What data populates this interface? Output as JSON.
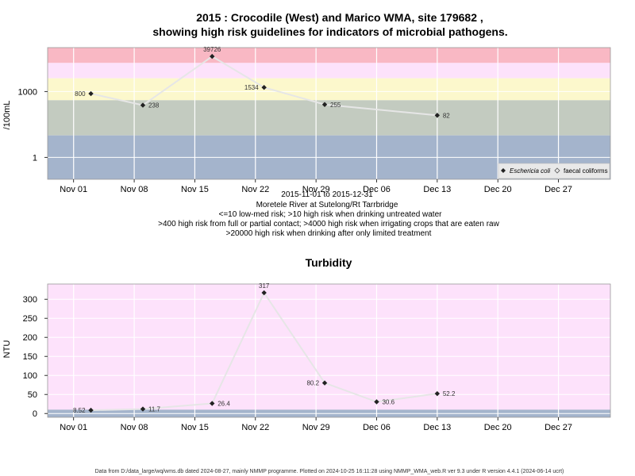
{
  "page": {
    "title_line1": "2015 : Crocodile (West) and Marico WMA, site 179682 ,",
    "title_line2": "showing high risk guidelines for indicators of microbial pathogens.",
    "footer": "Data from D:/data_large/wq/wms.db dated 2024-08-27, mainly NMMP programme. Plotted on 2024-10-25 16:11:28 using NMMP_WMA_web.R ver 9.3 under R version 4.4.1 (2024-06-14 ucrt)"
  },
  "micro": {
    "ylabel": "/100mL",
    "subtitle_lines": [
      "2015-11-01 to 2015-12-31",
      "Moretele River at Sutelong/Rt Tarrbridge",
      "<=10 low-med risk; >10 high risk when drinking untreated water",
      ">400 high risk from full or partial contact; >4000 high risk when irrigating crops that are eaten raw",
      ">20000 high risk when drinking after only limited treatment"
    ],
    "legend": [
      "Eschericia coli",
      "faecal coliforms"
    ]
  },
  "turb": {
    "title": "Turbidity",
    "ylabel": "NTU"
  },
  "colors": {
    "band_red": "#f9b8c4",
    "band_pink": "#fde2fb",
    "band_yellow": "#fcf8cc",
    "band_green": "#c3cbc0",
    "band_blue": "#a4b4cc",
    "turb_bg": "#fde2fb",
    "turb_low": "#a4b4cc",
    "line": "#e6e6e6",
    "point": "#222222"
  },
  "chart_data": [
    {
      "type": "line",
      "scale": "log10",
      "x_ticks": [
        "Nov 01",
        "Nov 08",
        "Nov 15",
        "Nov 22",
        "Nov 29",
        "Dec 06",
        "Dec 13",
        "Dec 20",
        "Dec 27"
      ],
      "x_tick_dates": [
        "2015-11-01",
        "2015-11-08",
        "2015-11-15",
        "2015-11-22",
        "2015-11-29",
        "2015-12-06",
        "2015-12-13",
        "2015-12-20",
        "2015-12-27"
      ],
      "x_range": [
        "2015-10-29",
        "2016-01-02"
      ],
      "y_ticks": [
        1,
        1000
      ],
      "y_ticklabels": [
        "1",
        "1000"
      ],
      "ylim": [
        0.1,
        100000
      ],
      "bands": [
        {
          "from": 20000,
          "to": 100000,
          "color": "band_red"
        },
        {
          "from": 4000,
          "to": 20000,
          "color": "band_pink"
        },
        {
          "from": 400,
          "to": 4000,
          "color": "band_yellow"
        },
        {
          "from": 10,
          "to": 400,
          "color": "band_green"
        },
        {
          "from": 0.1,
          "to": 10,
          "color": "band_blue"
        }
      ],
      "series": [
        {
          "name": "Eschericia coli",
          "x": [
            "2015-11-03",
            "2015-11-09",
            "2015-11-17",
            "2015-11-23",
            "2015-11-30",
            "2015-12-13"
          ],
          "values": [
            800,
            238,
            39726,
            1534,
            255,
            82
          ],
          "labels": [
            "800",
            "238",
            "39726",
            "1534",
            "255",
            "82"
          ]
        }
      ]
    },
    {
      "type": "line",
      "x_ticks": [
        "Nov 01",
        "Nov 08",
        "Nov 15",
        "Nov 22",
        "Nov 29",
        "Dec 06",
        "Dec 13",
        "Dec 20",
        "Dec 27"
      ],
      "x_tick_dates": [
        "2015-11-01",
        "2015-11-08",
        "2015-11-15",
        "2015-11-22",
        "2015-11-29",
        "2015-12-06",
        "2015-12-13",
        "2015-12-20",
        "2015-12-27"
      ],
      "x_range": [
        "2015-10-29",
        "2016-01-02"
      ],
      "y_ticks": [
        0,
        50,
        100,
        150,
        200,
        250,
        300
      ],
      "ylim": [
        -10,
        340
      ],
      "bands": [
        {
          "from": 10,
          "to": 340,
          "color": "turb_bg"
        },
        {
          "from": -10,
          "to": 10,
          "color": "turb_low"
        }
      ],
      "series": [
        {
          "x": [
            "2015-11-03",
            "2015-11-09",
            "2015-11-17",
            "2015-11-23",
            "2015-11-30",
            "2015-12-06",
            "2015-12-13"
          ],
          "values": [
            8.52,
            11.7,
            26.4,
            317,
            80.2,
            30.6,
            52.2
          ],
          "labels": [
            "8.52",
            "11.7",
            "26.4",
            "317",
            "80.2",
            "30.6",
            "52.2"
          ]
        }
      ]
    }
  ]
}
